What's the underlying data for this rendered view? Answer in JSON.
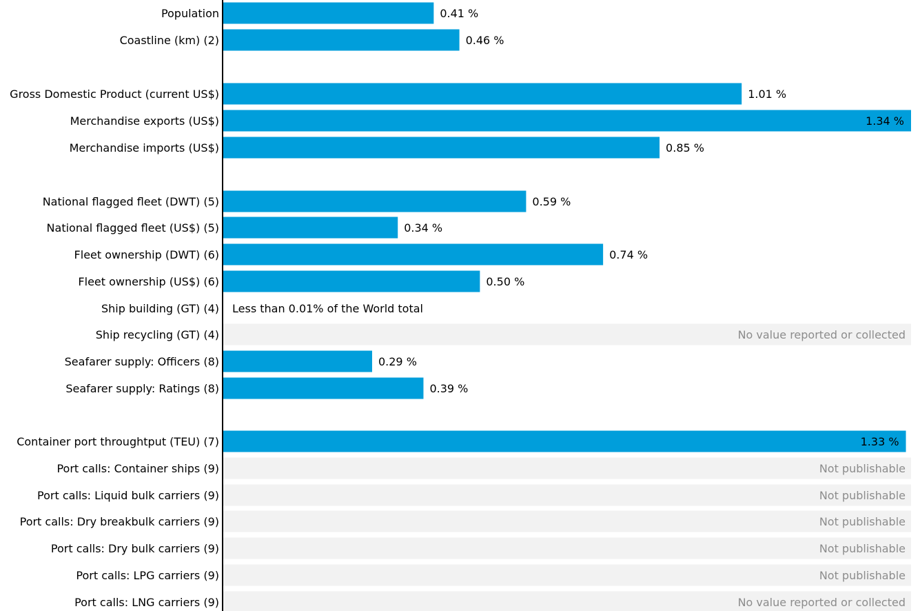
{
  "chart_data": {
    "type": "bar",
    "orientation": "horizontal",
    "unit": "%",
    "xlim": [
      0,
      1.34
    ],
    "grid": false,
    "legend": "none",
    "colors": {
      "bar": "#009EDB",
      "placeholder_band": "#F2F2F2",
      "placeholder_text": "#8C8C8C",
      "label_text": "#000000",
      "axis": "#000000"
    },
    "rows": [
      {
        "label": "Population",
        "value": 0.41,
        "display": "0.41 %"
      },
      {
        "label": "Coastline (km) (2)",
        "value": 0.46,
        "display": "0.46 %"
      },
      {
        "label": "Gross Domestic Product (current US$)",
        "value": 1.01,
        "display": "1.01 %"
      },
      {
        "label": "Merchandise exports (US$)",
        "value": 1.34,
        "display": "1.34 %"
      },
      {
        "label": "Merchandise imports (US$)",
        "value": 0.85,
        "display": "0.85 %"
      },
      {
        "label": "National flagged fleet (DWT) (5)",
        "value": 0.59,
        "display": "0.59 %"
      },
      {
        "label": "National flagged fleet (US$) (5)",
        "value": 0.34,
        "display": "0.34 %"
      },
      {
        "label": "Fleet ownership (DWT) (6)",
        "value": 0.74,
        "display": "0.74 %"
      },
      {
        "label": "Fleet ownership (US$) (6)",
        "value": 0.5,
        "display": "0.50 %"
      },
      {
        "label": "Ship building (GT) (4)",
        "value": null,
        "note": "Less than 0.01% of the World total"
      },
      {
        "label": "Ship recycling (GT) (4)",
        "value": null,
        "placeholder": "No value reported or collected"
      },
      {
        "label": "Seafarer supply: Officers (8)",
        "value": 0.29,
        "display": "0.29 %"
      },
      {
        "label": "Seafarer supply: Ratings (8)",
        "value": 0.39,
        "display": "0.39 %"
      },
      {
        "label": "Container port throughtput (TEU) (7)",
        "value": 1.33,
        "display": "1.33 %"
      },
      {
        "label": "Port calls: Container ships (9)",
        "value": null,
        "placeholder": "Not publishable"
      },
      {
        "label": "Port calls: Liquid bulk carriers (9)",
        "value": null,
        "placeholder": "Not publishable"
      },
      {
        "label": "Port calls: Dry breakbulk carriers (9)",
        "value": null,
        "placeholder": "Not publishable"
      },
      {
        "label": "Port calls: Dry bulk carriers (9)",
        "value": null,
        "placeholder": "Not publishable"
      },
      {
        "label": "Port calls: LPG carriers (9)",
        "value": null,
        "placeholder": "Not publishable"
      },
      {
        "label": "Port calls: LNG carriers (9)",
        "value": null,
        "placeholder": "No value reported or collected"
      }
    ]
  }
}
